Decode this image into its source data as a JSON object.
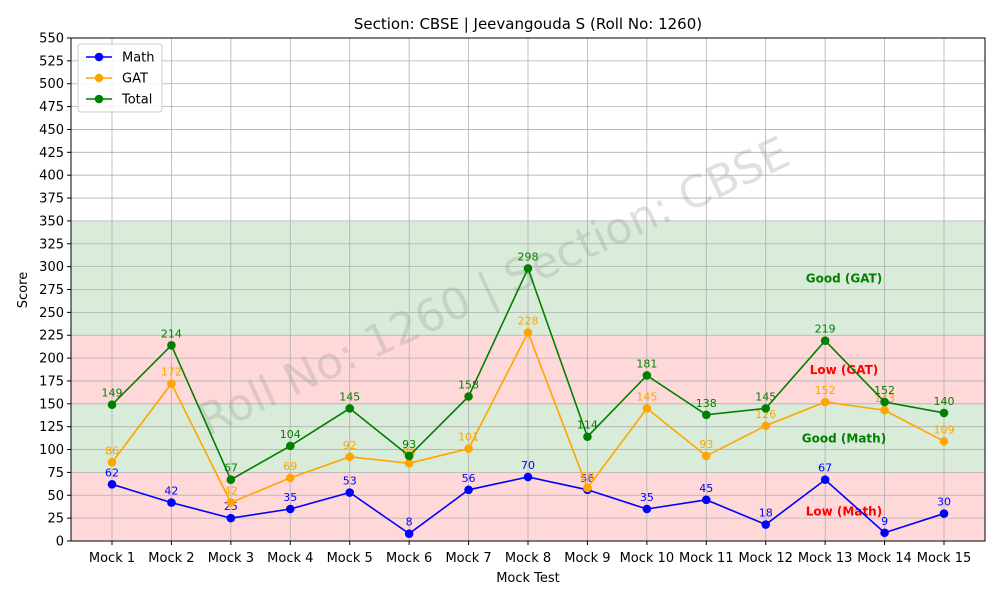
{
  "chart_data": {
    "type": "line",
    "title": "Section: CBSE | Jeevangouda S  (Roll No: 1260)",
    "xlabel": "Mock Test",
    "ylabel": "Score",
    "categories": [
      "Mock 1",
      "Mock 2",
      "Mock 3",
      "Mock 4",
      "Mock 5",
      "Mock 6",
      "Mock 7",
      "Mock 8",
      "Mock 9",
      "Mock 10",
      "Mock 11",
      "Mock 12",
      "Mock 13",
      "Mock 14",
      "Mock 15"
    ],
    "ylim": [
      0,
      550
    ],
    "ytick_step": 25,
    "grid": true,
    "legend_position": "top-left",
    "watermark": "Roll No: 1260 | Section: CBSE",
    "series": [
      {
        "name": "Math",
        "color": "#0000ff",
        "values": [
          62,
          42,
          25,
          35,
          53,
          8,
          56,
          70,
          56,
          35,
          45,
          18,
          67,
          9,
          30
        ]
      },
      {
        "name": "GAT",
        "color": "#ffa500",
        "values": [
          86,
          172,
          42,
          69,
          92,
          85,
          101,
          228,
          58,
          145,
          93,
          126,
          152,
          143,
          109
        ]
      },
      {
        "name": "Total",
        "color": "#008000",
        "values": [
          149,
          214,
          67,
          104,
          145,
          93,
          158,
          298,
          114,
          181,
          138,
          145,
          219,
          152,
          140
        ]
      }
    ],
    "bands": [
      {
        "from": 0,
        "to": 75,
        "color": "#ff0000",
        "label": "Low (Math)"
      },
      {
        "from": 75,
        "to": 150,
        "color": "#008000",
        "label": "Good (Math)"
      },
      {
        "from": 150,
        "to": 225,
        "color": "#ff0000",
        "label": "Low (GAT)"
      },
      {
        "from": 225,
        "to": 350,
        "color": "#008000",
        "label": "Good (GAT)"
      }
    ]
  }
}
